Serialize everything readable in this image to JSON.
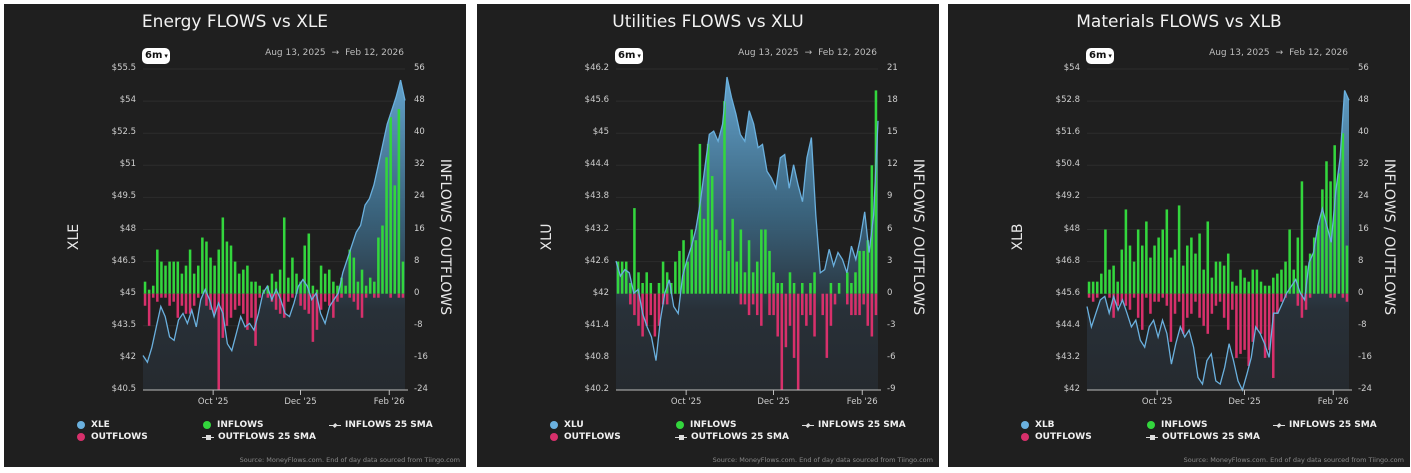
{
  "colors": {
    "price": "#6ab0de",
    "inflows": "#33d63d",
    "outflows": "#d7306b",
    "background": "#1f1f1f"
  },
  "range_button": "6m",
  "date_from": "Aug 13, 2025",
  "date_arrow": "→",
  "date_to": "Feb 12, 2026",
  "legend": {
    "inflows": "INFLOWS",
    "outflows": "OUTFLOWS",
    "inflows_sma": "INFLOWS 25 SMA",
    "outflows_sma": "OUTFLOWS 25 SMA"
  },
  "source": "Source: MoneyFlows.com. End of day data sourced from Tiingo.com",
  "chart_data": [
    {
      "type": "bar+area",
      "title": "Energy FLOWS vs XLE",
      "ticker": "XLE",
      "ylabel": "XLE",
      "y2label": "INFLOWS / OUTFLOWS",
      "x_range": [
        "2025-08-13",
        "2026-02-12"
      ],
      "x_ticks": [
        {
          "label": "Oct '25",
          "date": "2025-10-01"
        },
        {
          "label": "Dec '25",
          "date": "2025-12-01"
        },
        {
          "label": "Feb '26",
          "date": "2026-02-01"
        }
      ],
      "ylim": [
        40.5,
        55.5
      ],
      "y_ticks": [
        "$55.5",
        "$54",
        "$52.5",
        "$51",
        "$49.5",
        "$48",
        "$46.5",
        "$45",
        "$43.5",
        "$42",
        "$40.5"
      ],
      "y2lim": [
        -24,
        56
      ],
      "y2_ticks": [
        "56",
        "48",
        "40",
        "32",
        "24",
        "16",
        "8",
        "0",
        "-8",
        "-16",
        "-24"
      ],
      "price": [
        42.11,
        41.8,
        42.5,
        43.45,
        44.4,
        43.93,
        42.98,
        42.82,
        43.77,
        44.08,
        43.61,
        44.24,
        43.45,
        44.72,
        45.2,
        44.72,
        43.93,
        44.56,
        44.08,
        42.66,
        42.34,
        43.14,
        43.93,
        43.45,
        43.61,
        43.3,
        44.08,
        45.03,
        45.35,
        44.72,
        45.2,
        44.72,
        44.08,
        43.93,
        44.56,
        45.35,
        45.66,
        45.35,
        44.72,
        45.03,
        44.08,
        43.61,
        44.4,
        44.72,
        45.03,
        45.98,
        46.61,
        47.24,
        47.87,
        48.19,
        49.14,
        49.45,
        50.08,
        51.03,
        51.98,
        52.93,
        53.56,
        54.19,
        54.98,
        54.03
      ],
      "inflows": [
        3,
        1,
        2,
        11,
        8,
        7,
        8,
        8,
        8,
        5,
        7,
        11,
        5,
        7,
        14,
        13,
        9,
        7,
        11,
        19,
        13,
        12,
        8,
        5,
        6,
        7,
        3,
        3,
        2,
        1,
        2,
        5,
        3,
        6,
        19,
        4,
        9,
        5,
        3,
        12,
        15,
        2,
        1,
        7,
        5,
        6,
        3,
        2,
        4,
        2,
        11,
        9,
        3,
        6,
        2,
        4,
        3,
        14,
        17,
        34,
        44,
        27,
        46,
        8
      ],
      "outflows": [
        -3,
        -8,
        -1,
        -2,
        -1,
        -1,
        -3,
        -2,
        -6,
        -3,
        -5,
        -5,
        -3,
        -1,
        0,
        -3,
        -4,
        -5,
        -24,
        -11,
        -8,
        -6,
        -4,
        -3,
        -5,
        -9,
        -6,
        -13,
        -1,
        0,
        -1,
        -2,
        -4,
        -5,
        -6,
        -2,
        -1,
        0,
        -3,
        -4,
        -5,
        -12,
        -9,
        -4,
        -2,
        -3,
        -6,
        -2,
        -1,
        0,
        -1,
        -2,
        -4,
        -6,
        -1,
        0,
        -1,
        -1,
        0,
        0,
        -1,
        0,
        -1,
        -1
      ]
    },
    {
      "type": "bar+area",
      "title": "Utilities FLOWS vs XLU",
      "ticker": "XLU",
      "ylabel": "XLU",
      "y2label": "INFLOWS / OUTFLOWS",
      "x_range": [
        "2025-08-13",
        "2026-02-12"
      ],
      "x_ticks": [
        {
          "label": "Oct '25",
          "date": "2025-10-01"
        },
        {
          "label": "Dec '25",
          "date": "2025-12-01"
        },
        {
          "label": "Feb '26",
          "date": "2026-02-01"
        }
      ],
      "ylim": [
        40.2,
        46.2
      ],
      "y_ticks": [
        "$46.2",
        "$45.6",
        "$45",
        "$44.4",
        "$43.8",
        "$43.2",
        "$42.6",
        "$42",
        "$41.4",
        "$40.8",
        "$40.2"
      ],
      "y2lim": [
        -9,
        21
      ],
      "y2_ticks": [
        "21",
        "18",
        "15",
        "12",
        "9",
        "6",
        "3",
        "0",
        "-3",
        "-6",
        "-9"
      ],
      "price": [
        42.61,
        42.33,
        42.45,
        42.39,
        42.01,
        42.08,
        41.63,
        41.38,
        41.19,
        40.75,
        41.51,
        42.01,
        42.26,
        41.76,
        41.63,
        42.33,
        42.64,
        42.89,
        43.21,
        43.72,
        44.35,
        44.98,
        45.04,
        44.85,
        45.17,
        46.05,
        45.67,
        45.36,
        44.98,
        44.85,
        45.42,
        45.17,
        44.73,
        44.79,
        44.29,
        44.16,
        43.97,
        44.54,
        44.6,
        43.97,
        44.41,
        44.03,
        43.72,
        44.54,
        44.92,
        43.47,
        42.39,
        42.45,
        42.83,
        42.52,
        42.77,
        42.64,
        42.39,
        42.89,
        42.64,
        43.02,
        43.53,
        42.77,
        43.47,
        45.23
      ],
      "inflows": [
        3,
        3,
        3,
        1,
        8,
        2,
        1,
        2,
        1,
        0,
        1,
        3,
        2,
        1,
        3,
        4,
        5,
        3,
        6,
        5,
        14,
        7,
        14,
        11,
        6,
        5,
        18,
        4,
        7,
        3,
        6,
        2,
        5,
        2,
        3,
        6,
        6,
        4,
        2,
        1,
        1,
        0,
        2,
        1,
        0,
        1,
        0,
        1,
        2,
        0,
        0,
        0,
        1,
        0,
        1,
        0,
        2,
        1,
        2,
        4,
        4,
        5,
        12,
        19
      ],
      "outflows": [
        0,
        0,
        0,
        -1,
        -2,
        -3,
        -4,
        -3,
        -2,
        -4,
        -3,
        -1,
        -1,
        0,
        0,
        0,
        0,
        0,
        0,
        0,
        0,
        0,
        0,
        0,
        0,
        0,
        0,
        0,
        0,
        0,
        -1,
        -1,
        -2,
        -1,
        -2,
        -3,
        0,
        -2,
        -2,
        -4,
        -9,
        -5,
        -3,
        -6,
        -9,
        -2,
        -3,
        -2,
        -4,
        0,
        -2,
        -6,
        -3,
        -1,
        0,
        0,
        -1,
        -2,
        -2,
        -2,
        -1,
        -3,
        -4,
        -2
      ]
    },
    {
      "type": "bar+area",
      "title": "Materials FLOWS vs XLB",
      "ticker": "XLB",
      "ylabel": "XLB",
      "y2label": "INFLOWS / OUTFLOWS",
      "x_range": [
        "2025-08-13",
        "2026-02-12"
      ],
      "x_ticks": [
        {
          "label": "Oct '25",
          "date": "2025-10-01"
        },
        {
          "label": "Dec '25",
          "date": "2025-12-01"
        },
        {
          "label": "Feb '26",
          "date": "2026-02-01"
        }
      ],
      "ylim": [
        42,
        54
      ],
      "y_ticks": [
        "$54",
        "$52.8",
        "$51.6",
        "$50.4",
        "$49.2",
        "$48",
        "$46.8",
        "$45.6",
        "$44.4",
        "$43.2",
        "$42"
      ],
      "y2lim": [
        -24,
        56
      ],
      "y2_ticks": [
        "56",
        "48",
        "40",
        "32",
        "24",
        "16",
        "8",
        "0",
        "-8",
        "-16",
        "-24"
      ],
      "price": [
        45.12,
        44.36,
        44.87,
        45.37,
        45.5,
        44.87,
        45.5,
        44.99,
        45.37,
        44.87,
        44.36,
        44.61,
        43.86,
        43.6,
        44.36,
        44.61,
        43.98,
        44.61,
        44.11,
        42.97,
        43.73,
        44.36,
        43.98,
        44.24,
        43.6,
        42.47,
        42.22,
        43.1,
        43.35,
        42.34,
        42.22,
        42.85,
        43.73,
        43.1,
        42.34,
        42.0,
        42.59,
        43.22,
        44.36,
        44.11,
        43.73,
        43.22,
        44.87,
        44.87,
        45.25,
        45.63,
        45.88,
        46.13,
        45.63,
        45.37,
        46.76,
        47.14,
        48.15,
        48.78,
        48.15,
        47.52,
        49.41,
        50.68,
        53.2,
        52.83
      ],
      "inflows": [
        3,
        3,
        3,
        5,
        16,
        6,
        7,
        3,
        11,
        21,
        12,
        8,
        16,
        12,
        18,
        9,
        12,
        14,
        16,
        21,
        9,
        11,
        22,
        7,
        12,
        14,
        10,
        15,
        6,
        18,
        4,
        8,
        8,
        7,
        10,
        3,
        2,
        6,
        4,
        3,
        6,
        6,
        3,
        2,
        2,
        4,
        5,
        6,
        8,
        16,
        6,
        14,
        28,
        7,
        10,
        14,
        17,
        26,
        33,
        28,
        37,
        30,
        40,
        12
      ],
      "outflows": [
        -1,
        -2,
        -1,
        0,
        0,
        -1,
        -6,
        -3,
        -2,
        -3,
        -4,
        -1,
        -6,
        -9,
        -1,
        -5,
        -2,
        -2,
        -1,
        -3,
        -12,
        -5,
        -2,
        -10,
        -6,
        -5,
        -2,
        -6,
        -8,
        -10,
        -5,
        -3,
        -2,
        -6,
        -9,
        -4,
        -16,
        -15,
        -14,
        -18,
        -12,
        -9,
        -10,
        -16,
        -14,
        -21,
        -5,
        -2,
        -1,
        0,
        0,
        -3,
        -6,
        -4,
        -1,
        0,
        0,
        0,
        0,
        -1,
        -1,
        0,
        -1,
        -2
      ]
    }
  ]
}
